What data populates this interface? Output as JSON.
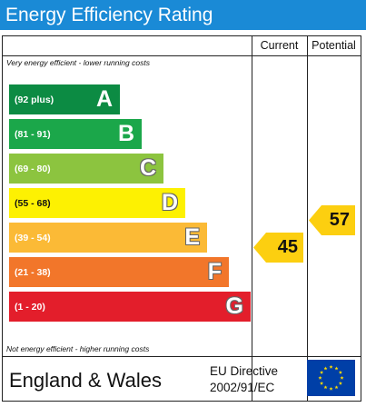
{
  "header": {
    "title": "Energy Efficiency Rating"
  },
  "columns": {
    "current": "Current",
    "potential": "Potential"
  },
  "captions": {
    "top": "Very energy efficient - lower running costs",
    "bottom": "Not energy efficient - higher running costs"
  },
  "bands": [
    {
      "range": "(92 plus)",
      "letter": "A",
      "color": "#0c8b43"
    },
    {
      "range": "(81 - 91)",
      "letter": "B",
      "color": "#1ba74a"
    },
    {
      "range": "(69 - 80)",
      "letter": "C",
      "color": "#8cc43f"
    },
    {
      "range": "(55 - 68)",
      "letter": "D",
      "color": "#fdf102"
    },
    {
      "range": "(39 - 54)",
      "letter": "E",
      "color": "#fbba36"
    },
    {
      "range": "(21 - 38)",
      "letter": "F",
      "color": "#f2762a"
    },
    {
      "range": "(1 - 20)",
      "letter": "G",
      "color": "#e31e2b"
    }
  ],
  "ratings": {
    "current": "45",
    "potential": "57",
    "arrow_color": "#fccf10"
  },
  "footer": {
    "region": "England & Wales",
    "directive_line1": "EU Directive",
    "directive_line2": "2002/91/EC",
    "flag": "eu-flag-icon",
    "flag_color": "#003fa7",
    "star_color": "#ffdd00"
  }
}
